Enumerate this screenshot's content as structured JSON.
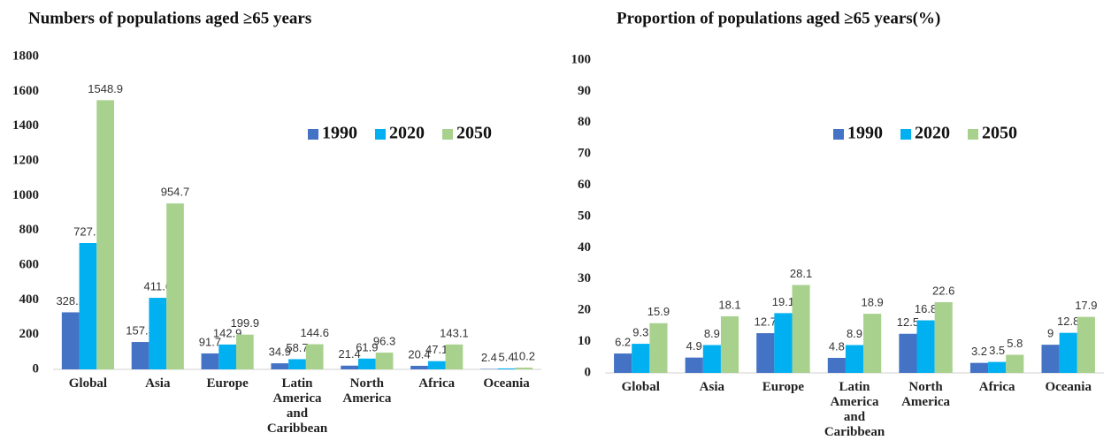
{
  "chart_data": [
    {
      "type": "bar",
      "title": "Numbers of populations aged ≥65 years",
      "categories": [
        "Global",
        "Asia",
        "Europe",
        "Latin America and Caribbean",
        "North America",
        "Africa",
        "Oceania"
      ],
      "series": [
        {
          "name": "1990",
          "color": "#4472c4",
          "values": [
            328.2,
            157.3,
            91.7,
            34.9,
            21.4,
            20.4,
            2.4
          ]
        },
        {
          "name": "2020",
          "color": "#00b0f0",
          "values": [
            727.1,
            411.6,
            142.9,
            58.7,
            61.9,
            47.1,
            5.4
          ]
        },
        {
          "name": "2050",
          "color": "#a9d18e",
          "values": [
            1548.9,
            954.7,
            199.9,
            144.6,
            96.3,
            143.1,
            10.2
          ]
        }
      ],
      "ylim": [
        0,
        1800
      ],
      "yticks": [
        0,
        200,
        400,
        600,
        800,
        1000,
        1200,
        1400,
        1600,
        1800
      ],
      "grid": false
    },
    {
      "type": "bar",
      "title": "Proportion of populations aged ≥65 years(%)",
      "categories": [
        "Global",
        "Asia",
        "Europe",
        "Latin America and Caribbean",
        "North America",
        "Africa",
        "Oceania"
      ],
      "series": [
        {
          "name": "1990",
          "color": "#4472c4",
          "values": [
            6.2,
            4.9,
            12.7,
            4.8,
            12.5,
            3.2,
            9
          ]
        },
        {
          "name": "2020",
          "color": "#00b0f0",
          "values": [
            9.3,
            8.9,
            19.1,
            8.9,
            16.8,
            3.5,
            12.8
          ]
        },
        {
          "name": "2050",
          "color": "#a9d18e",
          "values": [
            15.9,
            18.1,
            28.1,
            18.9,
            22.6,
            5.8,
            17.9
          ]
        }
      ],
      "ylim": [
        0,
        100
      ],
      "yticks": [
        0,
        10,
        20,
        30,
        40,
        50,
        60,
        70,
        80,
        90,
        100
      ],
      "grid": false
    }
  ]
}
